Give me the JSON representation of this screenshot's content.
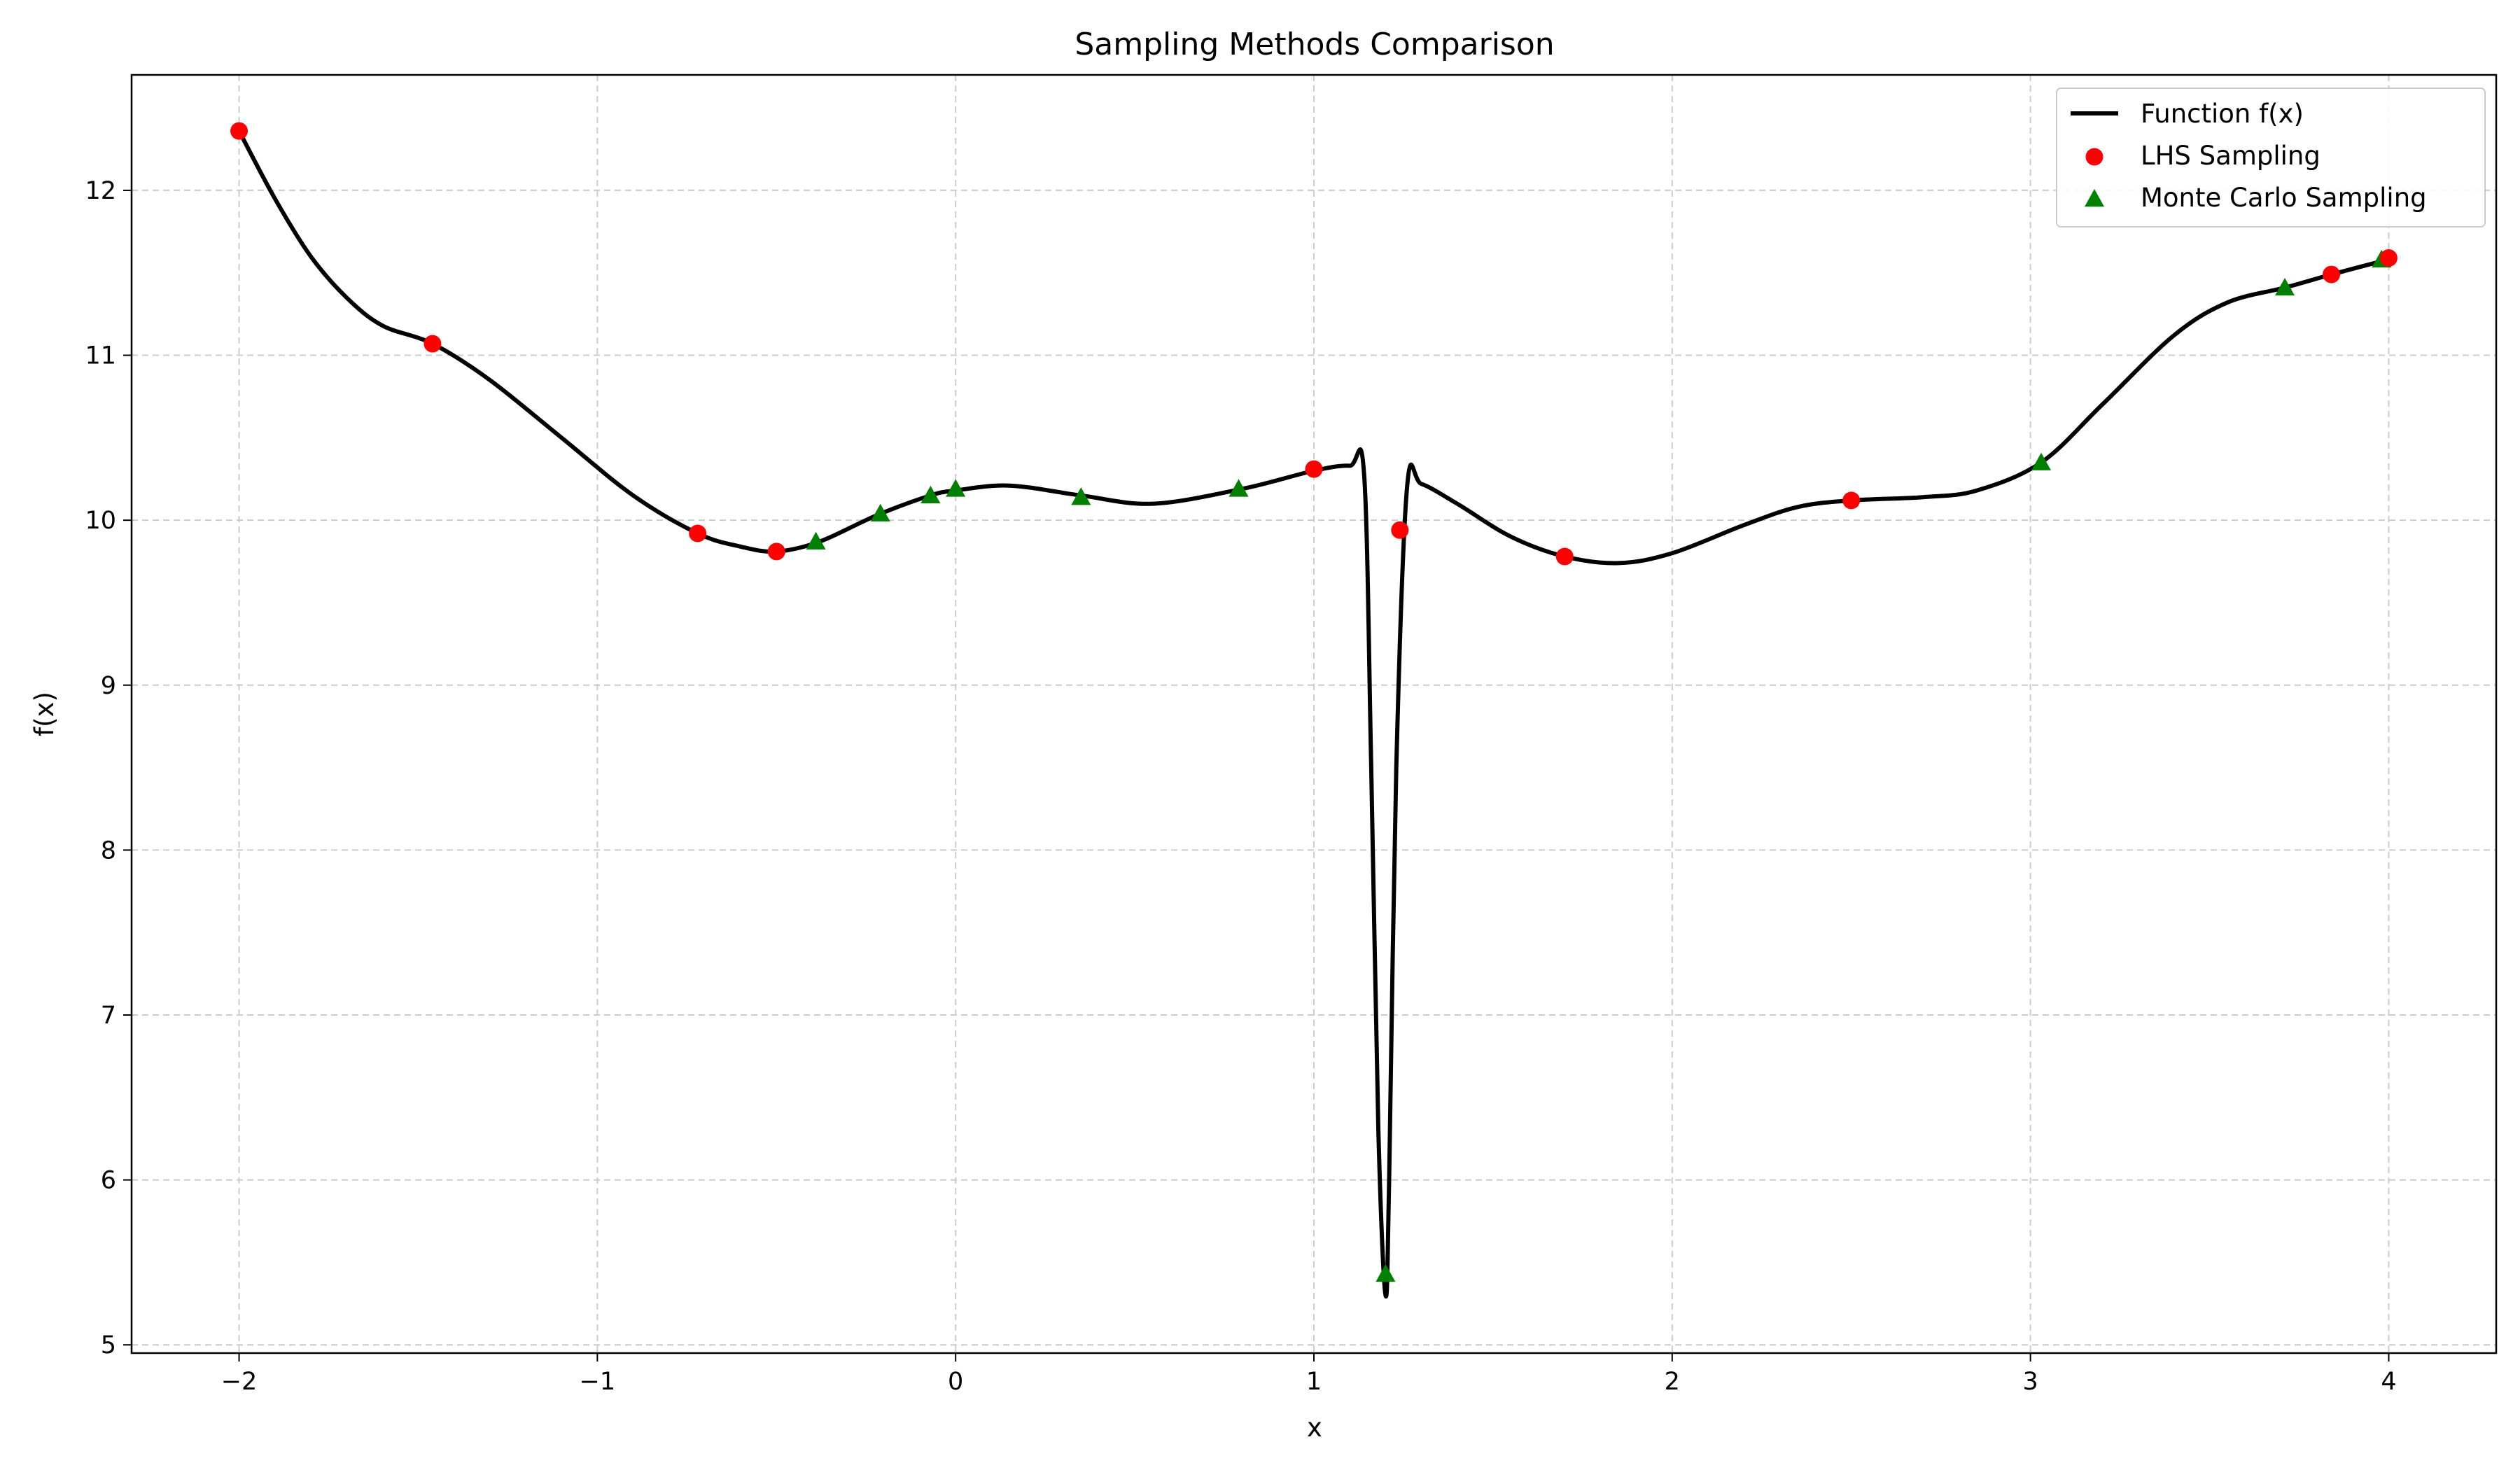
{
  "chart_data": {
    "type": "line",
    "title": "Sampling Methods Comparison",
    "xlabel": "x",
    "ylabel": "f(x)",
    "xlim": [
      -2.3,
      4.3
    ],
    "ylim": [
      4.95,
      12.7
    ],
    "xticks": [
      -2,
      -1,
      0,
      1,
      2,
      3,
      4
    ],
    "yticks": [
      5,
      6,
      7,
      8,
      9,
      10,
      11,
      12
    ],
    "xtick_labels": [
      "−2",
      "−1",
      "0",
      "1",
      "2",
      "3",
      "4"
    ],
    "ytick_labels": [
      "5",
      "6",
      "7",
      "8",
      "9",
      "10",
      "11",
      "12"
    ],
    "grid": true,
    "legend_position": "top-right",
    "colors": {
      "function": "#000000",
      "lhs": "#ff0000",
      "monte_carlo": "#008000",
      "grid": "#cccccc"
    },
    "series": [
      {
        "name": "Function f(x)",
        "kind": "line",
        "points": [
          [
            -2.0,
            12.36
          ],
          [
            -1.9,
            11.95
          ],
          [
            -1.8,
            11.6
          ],
          [
            -1.7,
            11.35
          ],
          [
            -1.6,
            11.18
          ],
          [
            -1.46,
            11.07
          ],
          [
            -1.3,
            10.85
          ],
          [
            -1.1,
            10.5
          ],
          [
            -0.9,
            10.15
          ],
          [
            -0.72,
            9.92
          ],
          [
            -0.6,
            9.84
          ],
          [
            -0.5,
            9.81
          ],
          [
            -0.38,
            9.87
          ],
          [
            -0.22,
            10.03
          ],
          [
            -0.07,
            10.15
          ],
          [
            0.0,
            10.18
          ],
          [
            0.15,
            10.21
          ],
          [
            0.35,
            10.15
          ],
          [
            0.55,
            10.1
          ],
          [
            0.8,
            10.19
          ],
          [
            1.0,
            10.3
          ],
          [
            1.1,
            10.33
          ],
          [
            1.14,
            10.28
          ],
          [
            1.16,
            8.5
          ],
          [
            1.18,
            6.3
          ],
          [
            1.2,
            5.3
          ],
          [
            1.21,
            6.0
          ],
          [
            1.23,
            8.5
          ],
          [
            1.26,
            10.2
          ],
          [
            1.3,
            10.22
          ],
          [
            1.4,
            10.1
          ],
          [
            1.55,
            9.9
          ],
          [
            1.7,
            9.78
          ],
          [
            1.85,
            9.74
          ],
          [
            2.0,
            9.8
          ],
          [
            2.2,
            9.97
          ],
          [
            2.35,
            10.08
          ],
          [
            2.5,
            10.12
          ],
          [
            2.7,
            10.14
          ],
          [
            2.85,
            10.18
          ],
          [
            3.03,
            10.35
          ],
          [
            3.2,
            10.7
          ],
          [
            3.4,
            11.12
          ],
          [
            3.55,
            11.32
          ],
          [
            3.71,
            11.41
          ],
          [
            3.84,
            11.49
          ],
          [
            3.98,
            11.57
          ],
          [
            4.0,
            11.58
          ]
        ]
      },
      {
        "name": "LHS Sampling",
        "kind": "scatter",
        "marker": "circle",
        "points": [
          [
            -2.0,
            12.36
          ],
          [
            -1.46,
            11.07
          ],
          [
            -0.72,
            9.92
          ],
          [
            -0.5,
            9.81
          ],
          [
            1.0,
            10.31
          ],
          [
            1.24,
            9.94
          ],
          [
            1.7,
            9.78
          ],
          [
            2.5,
            10.12
          ],
          [
            3.84,
            11.49
          ],
          [
            4.0,
            11.59
          ]
        ]
      },
      {
        "name": "Monte Carlo Sampling",
        "kind": "scatter",
        "marker": "triangle",
        "points": [
          [
            -0.39,
            9.87
          ],
          [
            -0.21,
            10.04
          ],
          [
            -0.07,
            10.15
          ],
          [
            0.0,
            10.19
          ],
          [
            0.35,
            10.14
          ],
          [
            0.79,
            10.19
          ],
          [
            1.2,
            5.43
          ],
          [
            3.03,
            10.35
          ],
          [
            3.71,
            11.41
          ],
          [
            3.98,
            11.58
          ]
        ]
      }
    ]
  }
}
